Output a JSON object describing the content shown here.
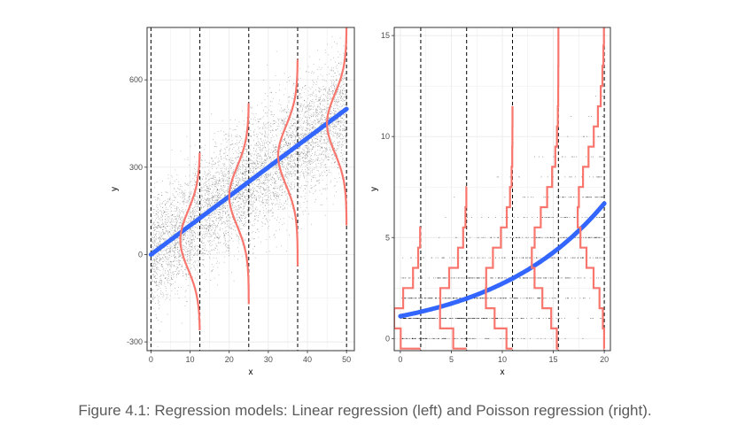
{
  "caption": "Figure 4.1: Regression models: Linear regression (left) and Poisson regression (right).",
  "colors": {
    "fit": "#3366ff",
    "density": "#f8766d",
    "points": "#000000",
    "grid": "#ebebeb",
    "border": "#333333",
    "vline": "#000000"
  },
  "chart_data": [
    {
      "type": "scatter",
      "title": "",
      "xlabel": "x",
      "ylabel": "y",
      "xlim": [
        -1,
        52
      ],
      "ylim": [
        -330,
        780
      ],
      "x_ticks": [
        0,
        10,
        20,
        30,
        40,
        50
      ],
      "x_tick_labels": [
        "0",
        "10",
        "20",
        "30",
        "40",
        "50"
      ],
      "y_ticks": [
        -300,
        0,
        300,
        600
      ],
      "y_tick_labels": [
        "-300",
        "0",
        "300",
        "600"
      ],
      "grid": true,
      "vlines": [
        0,
        12.5,
        25,
        37.5,
        50
      ],
      "fit_line": {
        "x": [
          0,
          50
        ],
        "y": [
          0,
          500
        ]
      },
      "densities": [
        {
          "x": 12.5,
          "mean": 50,
          "sd": 100,
          "y_range": [
            -260,
            350
          ]
        },
        {
          "x": 25,
          "mean": 200,
          "sd": 100,
          "y_range": [
            -170,
            520
          ]
        },
        {
          "x": 37.5,
          "mean": 340,
          "sd": 100,
          "y_range": [
            -40,
            670
          ]
        },
        {
          "x": 50,
          "mean": 450,
          "sd": 100,
          "y_range": [
            100,
            780
          ]
        }
      ],
      "scatter": {
        "x_range": [
          0,
          50
        ],
        "slope": 10,
        "intercept": 0,
        "sd": 100,
        "n": 6000
      }
    },
    {
      "type": "scatter",
      "title": "",
      "xlabel": "x",
      "ylabel": "y",
      "xlim": [
        -0.6,
        20.6
      ],
      "ylim": [
        -0.6,
        15.4
      ],
      "x_ticks": [
        0,
        5,
        10,
        15,
        20
      ],
      "x_tick_labels": [
        "0",
        "5",
        "10",
        "15",
        "20"
      ],
      "y_ticks": [
        0,
        5,
        10,
        15
      ],
      "y_tick_labels": [
        "0",
        "5",
        "10",
        "15"
      ],
      "grid": true,
      "vlines": [
        2,
        6.5,
        11,
        15.5,
        20
      ],
      "fit_curve": {
        "model": "poisson",
        "b0": 0.1,
        "b1": 0.09,
        "x_range": [
          0,
          20
        ]
      },
      "histograms": [
        {
          "x": 2,
          "max_count": 5
        },
        {
          "x": 6.5,
          "max_count": 7
        },
        {
          "x": 11,
          "max_count": 11
        },
        {
          "x": 15.5,
          "max_count": 15
        },
        {
          "x": 20,
          "max_count": 15
        }
      ],
      "scatter": {
        "x_range": [
          0,
          20
        ],
        "n": 1200
      }
    }
  ]
}
